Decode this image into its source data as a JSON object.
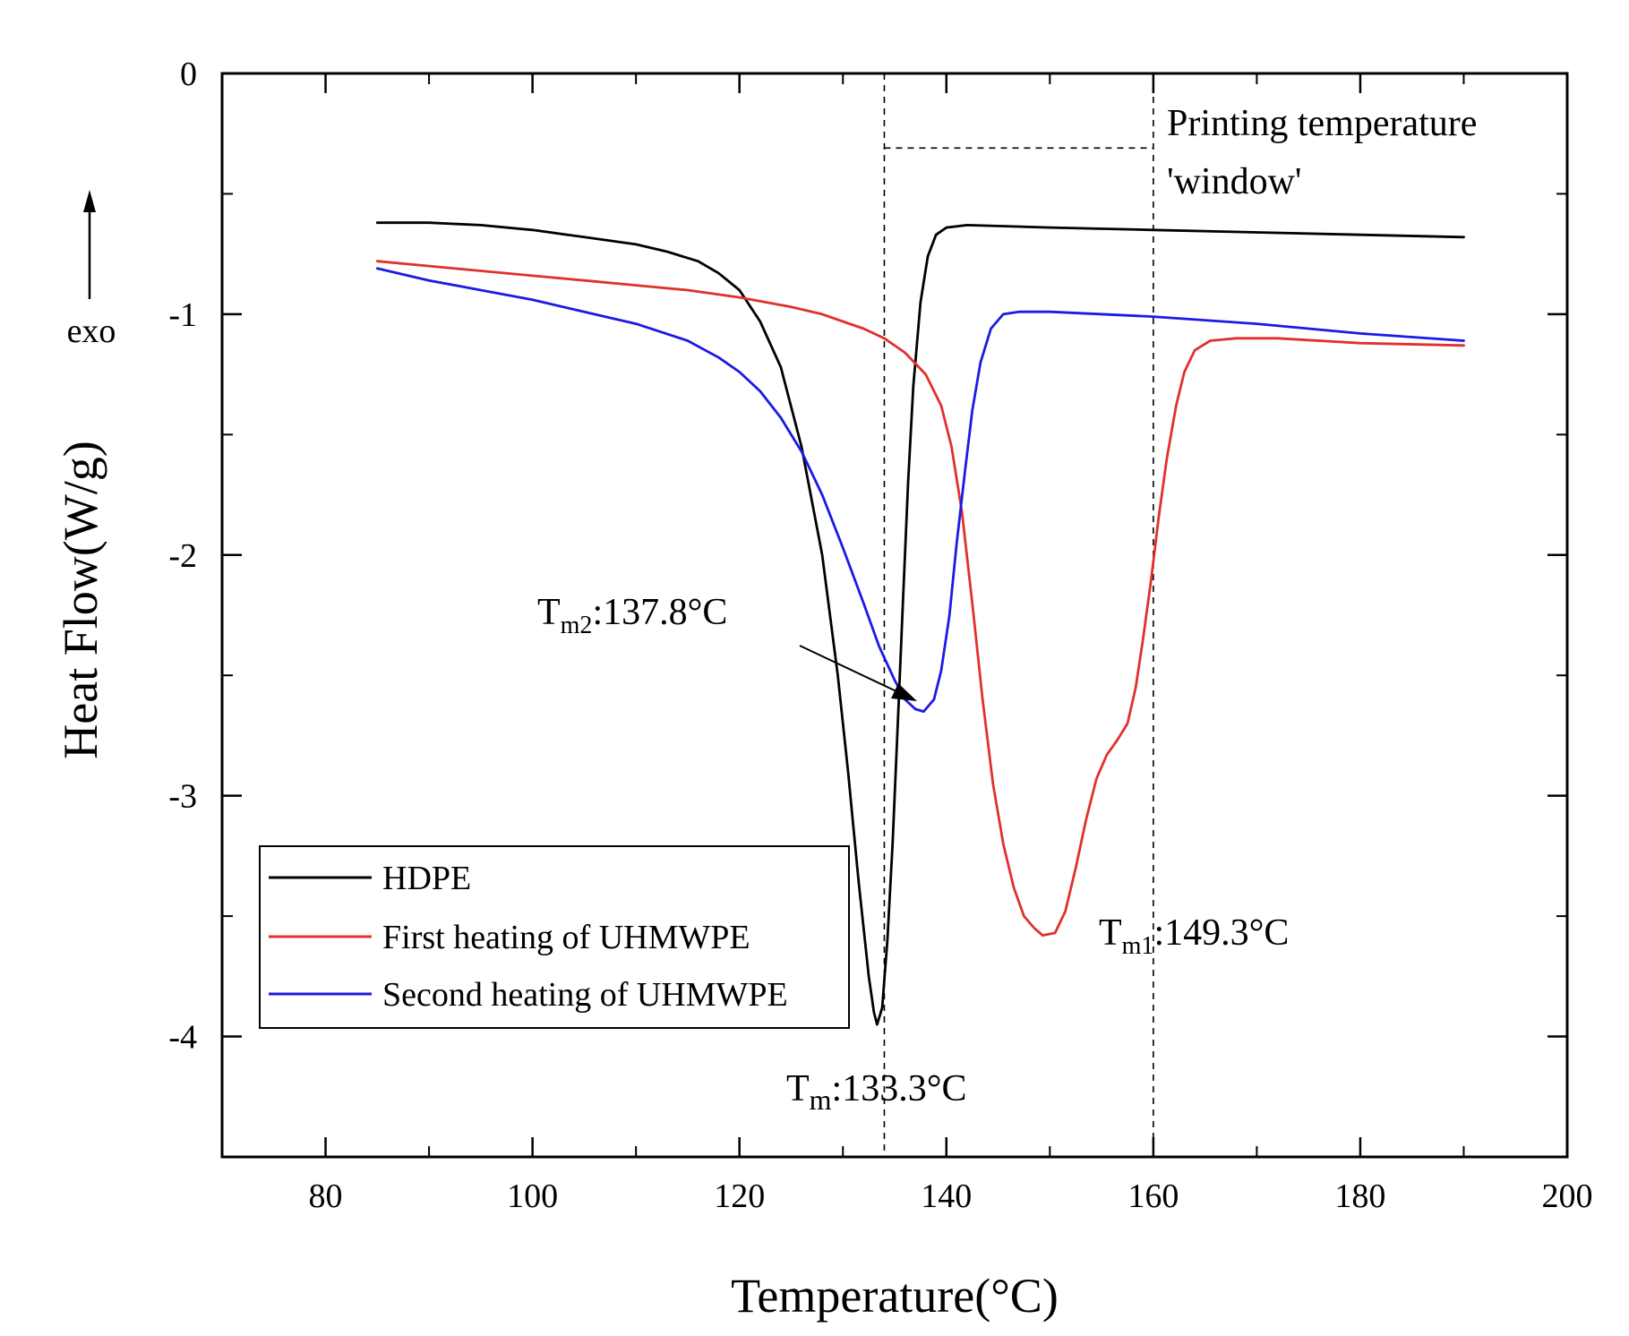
{
  "chart_data": {
    "type": "line",
    "xlabel": "Temperature(°C)",
    "ylabel": "Heat Flow(W/g)",
    "xlim": [
      70,
      200
    ],
    "ylim": [
      -4.5,
      0
    ],
    "x_ticks": [
      80,
      100,
      120,
      140,
      160,
      180,
      200
    ],
    "y_ticks": [
      0,
      -1,
      -2,
      -3,
      -4
    ],
    "x_tick_labels": [
      "80",
      "100",
      "120",
      "140",
      "160",
      "180",
      "200"
    ],
    "y_tick_labels": [
      "0",
      "-1",
      "-2",
      "-3",
      "-4"
    ],
    "exo_label": "exo",
    "legend": {
      "position": "bottom-left",
      "entries": [
        "HDPE",
        "First heating of UHMWPE",
        "Second heating of UHMWPE"
      ]
    },
    "series": [
      {
        "name": "HDPE",
        "color": "#000000",
        "points": [
          [
            85,
            -0.62
          ],
          [
            90,
            -0.62
          ],
          [
            95,
            -0.63
          ],
          [
            100,
            -0.65
          ],
          [
            105,
            -0.68
          ],
          [
            110,
            -0.71
          ],
          [
            113,
            -0.74
          ],
          [
            116,
            -0.78
          ],
          [
            118,
            -0.83
          ],
          [
            120,
            -0.9
          ],
          [
            122,
            -1.03
          ],
          [
            124,
            -1.22
          ],
          [
            126,
            -1.55
          ],
          [
            128,
            -2.0
          ],
          [
            129.5,
            -2.5
          ],
          [
            130.5,
            -2.9
          ],
          [
            131.5,
            -3.35
          ],
          [
            132.5,
            -3.75
          ],
          [
            133,
            -3.9
          ],
          [
            133.3,
            -3.95
          ],
          [
            133.8,
            -3.88
          ],
          [
            134.3,
            -3.6
          ],
          [
            134.8,
            -3.2
          ],
          [
            135.3,
            -2.7
          ],
          [
            135.8,
            -2.2
          ],
          [
            136.3,
            -1.7
          ],
          [
            136.8,
            -1.3
          ],
          [
            137.5,
            -0.95
          ],
          [
            138.2,
            -0.76
          ],
          [
            139,
            -0.67
          ],
          [
            140,
            -0.64
          ],
          [
            142,
            -0.63
          ],
          [
            150,
            -0.64
          ],
          [
            160,
            -0.65
          ],
          [
            170,
            -0.66
          ],
          [
            180,
            -0.67
          ],
          [
            190,
            -0.68
          ]
        ]
      },
      {
        "name": "First heating of UHMWPE",
        "color": "#e0312b",
        "points": [
          [
            85,
            -0.78
          ],
          [
            90,
            -0.8
          ],
          [
            95,
            -0.82
          ],
          [
            100,
            -0.84
          ],
          [
            105,
            -0.86
          ],
          [
            110,
            -0.88
          ],
          [
            115,
            -0.9
          ],
          [
            120,
            -0.93
          ],
          [
            125,
            -0.97
          ],
          [
            128,
            -1.0
          ],
          [
            130,
            -1.03
          ],
          [
            132,
            -1.06
          ],
          [
            134,
            -1.1
          ],
          [
            136,
            -1.16
          ],
          [
            138,
            -1.25
          ],
          [
            139.5,
            -1.38
          ],
          [
            140.5,
            -1.55
          ],
          [
            141.5,
            -1.82
          ],
          [
            142.5,
            -2.2
          ],
          [
            143.5,
            -2.6
          ],
          [
            144.5,
            -2.95
          ],
          [
            145.5,
            -3.2
          ],
          [
            146.5,
            -3.38
          ],
          [
            147.5,
            -3.5
          ],
          [
            148.5,
            -3.55
          ],
          [
            149.3,
            -3.58
          ],
          [
            150.5,
            -3.57
          ],
          [
            151.5,
            -3.48
          ],
          [
            152.5,
            -3.3
          ],
          [
            153.5,
            -3.1
          ],
          [
            154.5,
            -2.93
          ],
          [
            155.5,
            -2.83
          ],
          [
            156.5,
            -2.77
          ],
          [
            157.5,
            -2.7
          ],
          [
            158.3,
            -2.55
          ],
          [
            159,
            -2.35
          ],
          [
            159.8,
            -2.1
          ],
          [
            160.5,
            -1.85
          ],
          [
            161.3,
            -1.6
          ],
          [
            162.2,
            -1.38
          ],
          [
            163,
            -1.24
          ],
          [
            164,
            -1.15
          ],
          [
            165.5,
            -1.11
          ],
          [
            168,
            -1.1
          ],
          [
            172,
            -1.1
          ],
          [
            180,
            -1.12
          ],
          [
            190,
            -1.13
          ]
        ]
      },
      {
        "name": "Second heating of UHMWPE",
        "color": "#1a1ae6",
        "points": [
          [
            85,
            -0.81
          ],
          [
            90,
            -0.86
          ],
          [
            95,
            -0.9
          ],
          [
            100,
            -0.94
          ],
          [
            105,
            -0.99
          ],
          [
            110,
            -1.04
          ],
          [
            115,
            -1.11
          ],
          [
            118,
            -1.18
          ],
          [
            120,
            -1.24
          ],
          [
            122,
            -1.32
          ],
          [
            124,
            -1.43
          ],
          [
            126,
            -1.57
          ],
          [
            128,
            -1.75
          ],
          [
            130,
            -1.97
          ],
          [
            132,
            -2.2
          ],
          [
            133.5,
            -2.38
          ],
          [
            135,
            -2.52
          ],
          [
            136,
            -2.6
          ],
          [
            137,
            -2.64
          ],
          [
            137.8,
            -2.65
          ],
          [
            138.8,
            -2.6
          ],
          [
            139.5,
            -2.48
          ],
          [
            140.3,
            -2.25
          ],
          [
            141,
            -1.95
          ],
          [
            141.8,
            -1.65
          ],
          [
            142.5,
            -1.4
          ],
          [
            143.3,
            -1.2
          ],
          [
            144.3,
            -1.06
          ],
          [
            145.5,
            -1.0
          ],
          [
            147,
            -0.99
          ],
          [
            150,
            -0.99
          ],
          [
            160,
            -1.01
          ],
          [
            170,
            -1.04
          ],
          [
            180,
            -1.08
          ],
          [
            190,
            -1.11
          ]
        ]
      }
    ],
    "annotations": [
      {
        "base": "T",
        "sub": "m",
        "text": ":133.3°C",
        "x": 133.3
      },
      {
        "base": "T",
        "sub": "m2",
        "text": ":137.8°C",
        "x": 137.8
      },
      {
        "base": "T",
        "sub": "m1",
        "text": ":149.3°C",
        "x": 149.3
      },
      {
        "line1": "Printing temperature",
        "line2": "'window'"
      }
    ],
    "reference_lines": [
      {
        "x": 134,
        "style": "dashed"
      },
      {
        "x": 160,
        "style": "dashed"
      }
    ]
  }
}
